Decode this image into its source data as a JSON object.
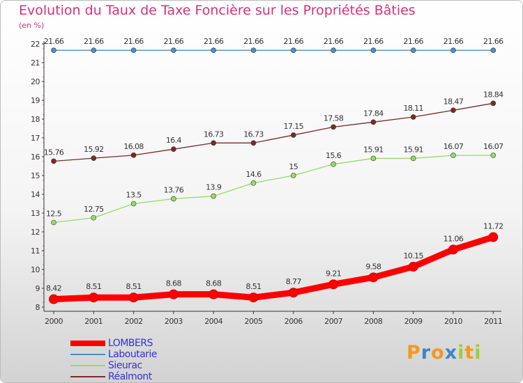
{
  "header": {
    "title": "Evolution du Taux de Taxe Foncière sur les Propriétés Bâties",
    "unit": "(en %)"
  },
  "logo": {
    "letters": [
      "P",
      "r",
      "o",
      "x",
      "i",
      "t",
      "i"
    ],
    "colors": [
      "#f29a1e",
      "#3d86c6",
      "#f29a1e",
      "#3d86c6",
      "#9ccc3c",
      "#f29a1e",
      "#9ccc3c"
    ]
  },
  "chart_data": {
    "type": "line",
    "title": "Evolution du Taux de Taxe Foncière sur les Propriétés Bâties",
    "ylabel": "(en %)",
    "xlabel": "",
    "x": [
      "2000",
      "2001",
      "2002",
      "2003",
      "2004",
      "2005",
      "2006",
      "2007",
      "2008",
      "2009",
      "2010",
      "2011"
    ],
    "ylim": [
      8,
      22
    ],
    "yticks": [
      8,
      9,
      10,
      11,
      12,
      13,
      14,
      15,
      16,
      17,
      18,
      19,
      20,
      21,
      22
    ],
    "grid": false,
    "legend_position": "bottom-left",
    "series": [
      {
        "name": "LOMBERS",
        "color": "#ff0000",
        "emphasis": true,
        "values": [
          8.42,
          8.51,
          8.51,
          8.68,
          8.68,
          8.51,
          8.77,
          9.21,
          9.58,
          10.15,
          11.06,
          11.72
        ],
        "labels": [
          "8.42",
          "8.51",
          "8.51",
          "8.68",
          "8.68",
          "8.51",
          "8.77",
          "9.21",
          "9.58",
          "10.15",
          "11.06",
          "11.72"
        ]
      },
      {
        "name": "Laboutarie",
        "color": "#4a90c8",
        "emphasis": false,
        "values": [
          21.66,
          21.66,
          21.66,
          21.66,
          21.66,
          21.66,
          21.66,
          21.66,
          21.66,
          21.66,
          21.66,
          21.66
        ],
        "labels": [
          "21.66",
          "21.66",
          "21.66",
          "21.66",
          "21.66",
          "21.66",
          "21.66",
          "21.66",
          "21.66",
          "21.66",
          "21.66",
          "21.66"
        ]
      },
      {
        "name": "Sieurac",
        "color": "#99d966",
        "emphasis": false,
        "values": [
          12.5,
          12.75,
          13.5,
          13.76,
          13.9,
          14.6,
          15,
          15.6,
          15.91,
          15.91,
          16.07,
          16.07
        ],
        "labels": [
          "12.5",
          "12.75",
          "13.5",
          "13.76",
          "13.9",
          "14.6",
          "15",
          "15.6",
          "15.91",
          "15.91",
          "16.07",
          "16.07"
        ]
      },
      {
        "name": "Réalmont",
        "color": "#7a2a2a",
        "emphasis": false,
        "values": [
          15.76,
          15.92,
          16.08,
          16.4,
          16.73,
          16.73,
          17.15,
          17.58,
          17.84,
          18.11,
          18.47,
          18.84
        ],
        "labels": [
          "15.76",
          "15.92",
          "16.08",
          "16.4",
          "16.73",
          "16.73",
          "17.15",
          "17.58",
          "17.84",
          "18.11",
          "18.47",
          "18.84"
        ]
      }
    ]
  }
}
